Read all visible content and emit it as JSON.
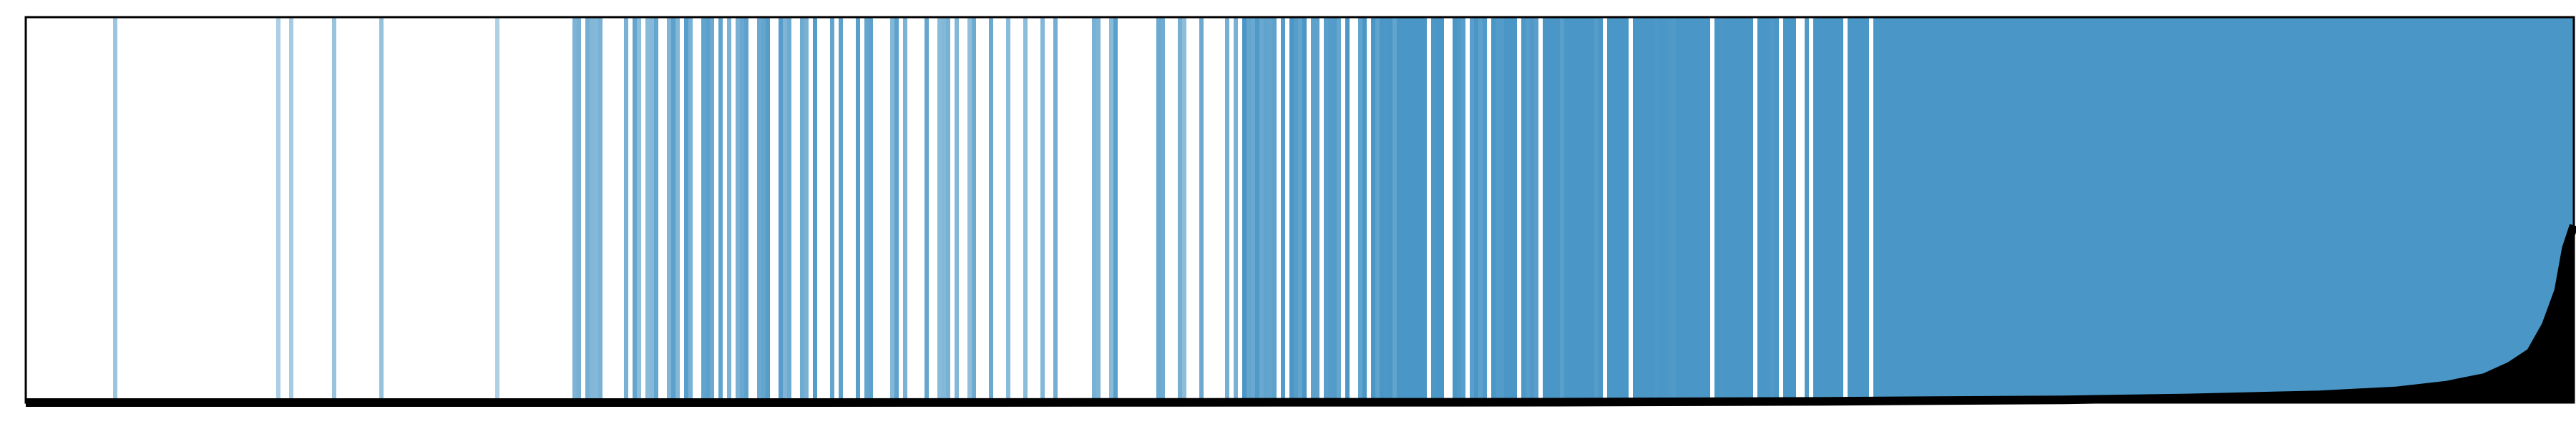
{
  "chart_data": {
    "type": "area",
    "title": "",
    "xlabel": "",
    "ylabel": "",
    "grid": false,
    "legend": "none",
    "colors": {
      "band": "#4a96c6",
      "curve": "#000000",
      "frame": "#000000",
      "background": "#ffffff"
    },
    "x_range": [
      0,
      1
    ],
    "y_range": [
      0,
      1
    ],
    "band_density": [
      [
        0.0,
        0.0
      ],
      [
        0.02,
        0.15
      ],
      [
        0.07,
        0.05
      ],
      [
        0.12,
        0.12
      ],
      [
        0.16,
        0.06
      ],
      [
        0.2,
        0.0
      ],
      [
        0.215,
        0.35
      ],
      [
        0.245,
        0.45
      ],
      [
        0.28,
        0.55
      ],
      [
        0.33,
        0.5
      ],
      [
        0.37,
        0.38
      ],
      [
        0.42,
        0.5
      ],
      [
        0.46,
        0.35
      ],
      [
        0.48,
        0.7
      ],
      [
        0.54,
        0.8
      ],
      [
        0.59,
        0.85
      ],
      [
        0.64,
        0.9
      ],
      [
        0.7,
        0.94
      ],
      [
        0.8,
        0.99
      ],
      [
        1.0,
        1.0
      ]
    ],
    "curve": {
      "x": [
        0.0,
        0.3,
        0.6,
        0.7,
        0.8,
        0.85,
        0.9,
        0.93,
        0.95,
        0.965,
        0.975,
        0.983,
        0.989,
        0.994,
        0.997,
        1.0
      ],
      "y": [
        0.0,
        0.0,
        0.001,
        0.003,
        0.007,
        0.012,
        0.02,
        0.03,
        0.045,
        0.065,
        0.095,
        0.13,
        0.2,
        0.29,
        0.4,
        0.46
      ]
    }
  }
}
